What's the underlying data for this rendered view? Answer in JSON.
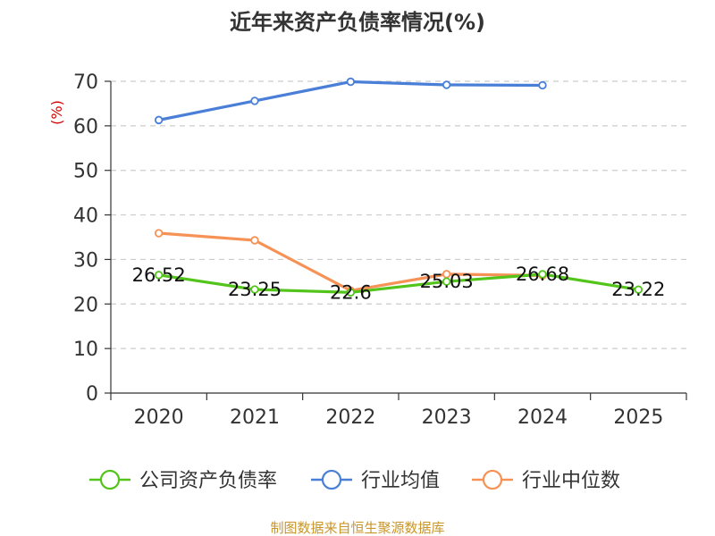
{
  "colors": {
    "company": "#52c41a",
    "industry_avg": "#4a7fd8",
    "industry_median": "#f79256",
    "unit_label": "#d40000",
    "source_text": "#c8962a",
    "grid": "#cccccc",
    "axis": "#333333"
  },
  "chart_data": {
    "type": "line",
    "title": "近年来资产负债率情况(%)",
    "ylabel": "(%)",
    "xlabel": "",
    "ylim": [
      0,
      70
    ],
    "y_ticks": [
      "0",
      "10",
      "20",
      "30",
      "40",
      "50",
      "60",
      "70"
    ],
    "categories": [
      "2020",
      "2021",
      "2022",
      "2023",
      "2024",
      "2025"
    ],
    "grid": true,
    "legend_position": "bottom",
    "series": [
      {
        "name": "公司资产负债率",
        "color_key": "company",
        "values": [
          26.52,
          23.25,
          22.6,
          25.03,
          26.68,
          23.22
        ],
        "labels": [
          "26.52",
          "23.25",
          "22.6",
          "25.03",
          "26.68",
          "23.22"
        ]
      },
      {
        "name": "行业均值",
        "color_key": "industry_avg",
        "values": [
          61.3,
          65.6,
          69.9,
          69.2,
          69.1,
          null
        ]
      },
      {
        "name": "行业中位数",
        "color_key": "industry_median",
        "values": [
          35.9,
          34.3,
          23.0,
          26.7,
          26.4,
          null
        ]
      }
    ]
  },
  "footer": {
    "source": "制图数据来自恒生聚源数据库"
  }
}
